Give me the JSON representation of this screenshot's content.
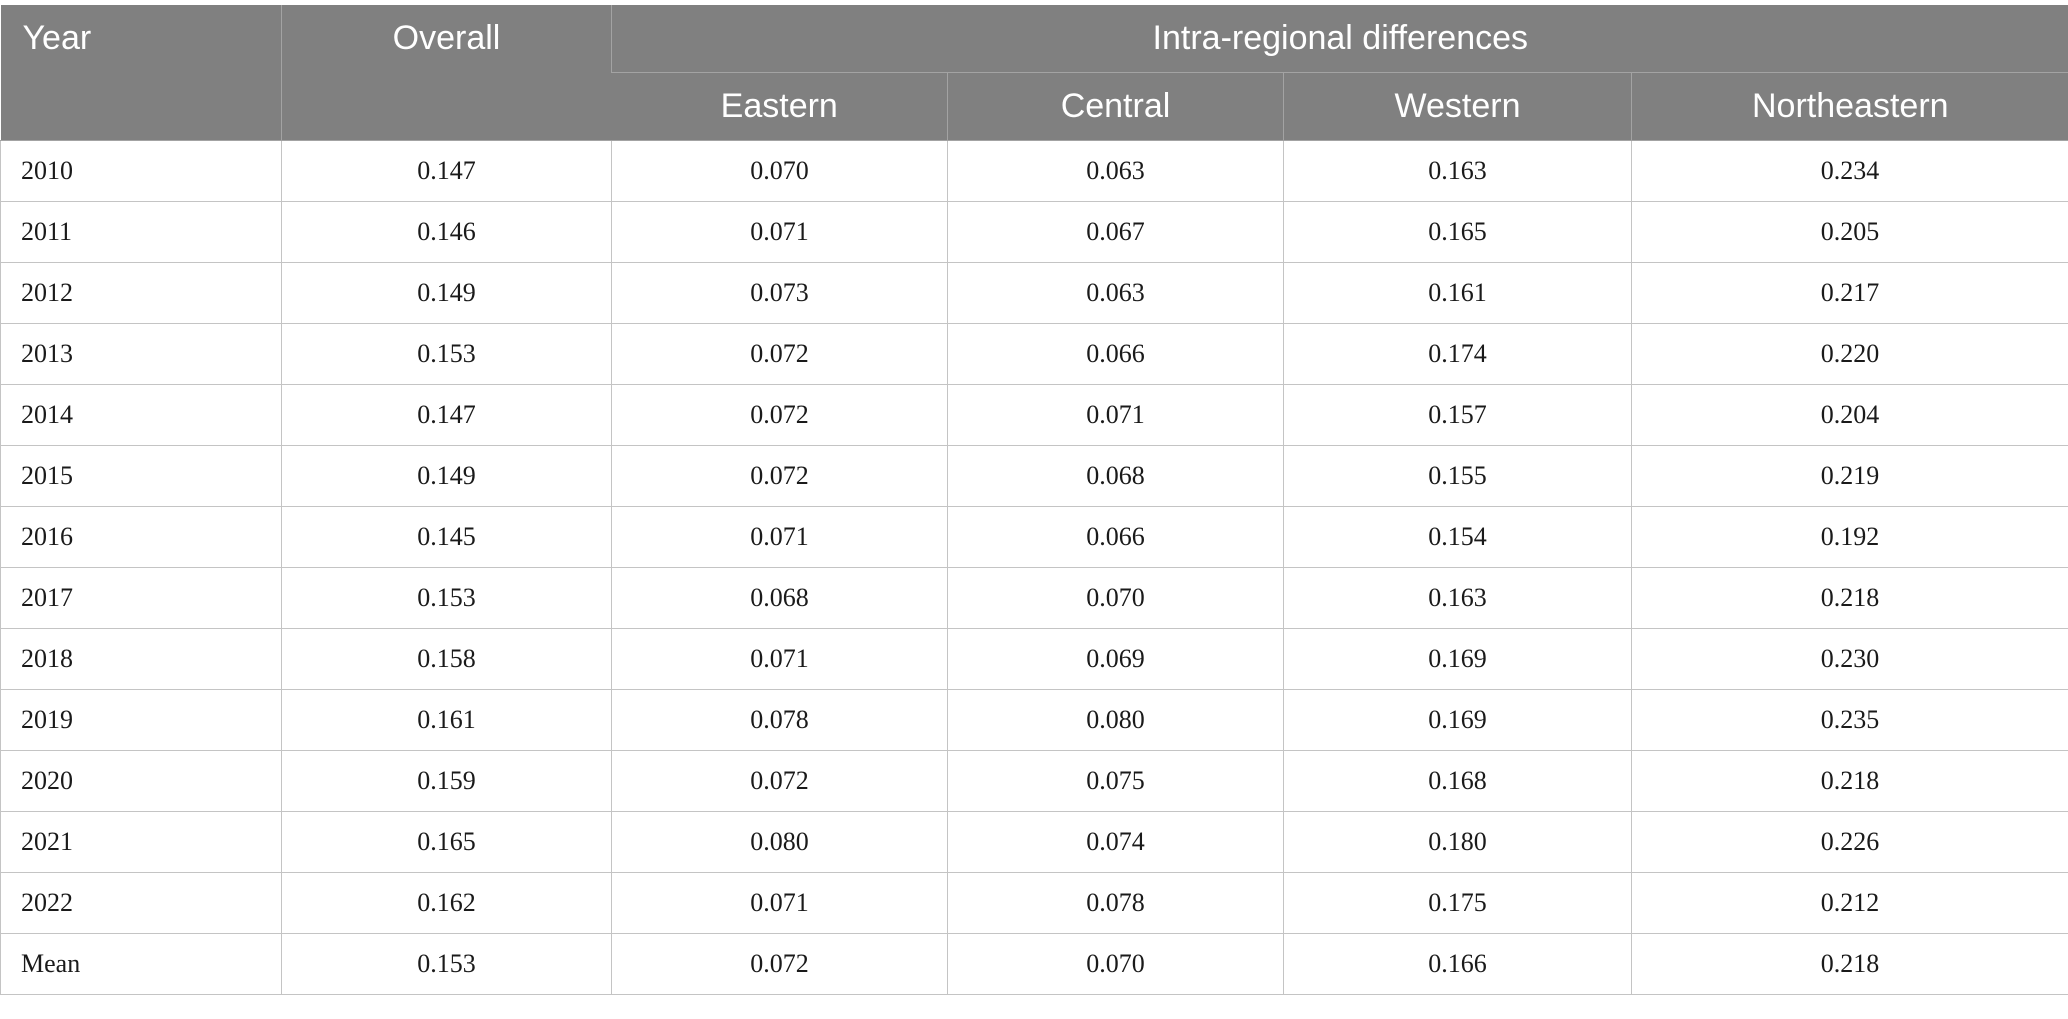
{
  "header": {
    "year": "Year",
    "overall": "Overall",
    "group": "Intra-regional differences",
    "regions": [
      "Eastern",
      "Central",
      "Western",
      "Northeastern"
    ]
  },
  "rows": [
    [
      "2010",
      "0.147",
      "0.070",
      "0.063",
      "0.163",
      "0.234"
    ],
    [
      "2011",
      "0.146",
      "0.071",
      "0.067",
      "0.165",
      "0.205"
    ],
    [
      "2012",
      "0.149",
      "0.073",
      "0.063",
      "0.161",
      "0.217"
    ],
    [
      "2013",
      "0.153",
      "0.072",
      "0.066",
      "0.174",
      "0.220"
    ],
    [
      "2014",
      "0.147",
      "0.072",
      "0.071",
      "0.157",
      "0.204"
    ],
    [
      "2015",
      "0.149",
      "0.072",
      "0.068",
      "0.155",
      "0.219"
    ],
    [
      "2016",
      "0.145",
      "0.071",
      "0.066",
      "0.154",
      "0.192"
    ],
    [
      "2017",
      "0.153",
      "0.068",
      "0.070",
      "0.163",
      "0.218"
    ],
    [
      "2018",
      "0.158",
      "0.071",
      "0.069",
      "0.169",
      "0.230"
    ],
    [
      "2019",
      "0.161",
      "0.078",
      "0.080",
      "0.169",
      "0.235"
    ],
    [
      "2020",
      "0.159",
      "0.072",
      "0.075",
      "0.168",
      "0.218"
    ],
    [
      "2021",
      "0.165",
      "0.080",
      "0.074",
      "0.180",
      "0.226"
    ],
    [
      "2022",
      "0.162",
      "0.071",
      "0.078",
      "0.175",
      "0.212"
    ],
    [
      "Mean",
      "0.153",
      "0.072",
      "0.070",
      "0.166",
      "0.218"
    ]
  ],
  "colors": {
    "header_bg": "#808080",
    "header_text": "#ffffff",
    "grid": "#c4c4c4"
  }
}
